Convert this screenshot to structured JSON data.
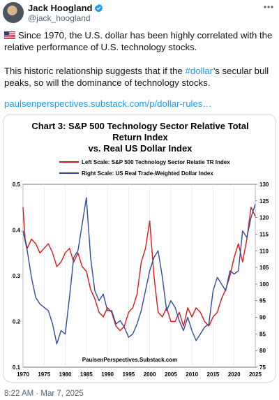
{
  "tweet": {
    "display_name": "Jack Hoogland",
    "handle": "@jack_hoogland",
    "line1": "Since 1970, the U.S. dollar has been highly correlated with the",
    "line2": "relative performance of U.S. technology stocks.",
    "line3_pre": "This historic relationship suggests that if the ",
    "hashtag": "#dollar",
    "line3_post": "’s secular bull",
    "line4": "peaks, so will the dominance of technology stocks.",
    "link": "paulsenperspectives.substack.com/p/dollar-rules…",
    "timestamp": "8:22 AM · Mar 7, 2025",
    "accent_color": "#1d9bf0"
  },
  "chart_data": {
    "type": "line",
    "title_line1": "Chart 3: S&P 500 Technology Sector Relative Total",
    "title_line2": "Return Index",
    "title_line3": "vs. Real US Dollar Index",
    "legend": [
      {
        "name": "Left Scale: S&P 500 Technology Sector Relatie TR Index",
        "color": "#d7191c"
      },
      {
        "name": "Right Scale: US Real Trade-Weighted Dollar Index",
        "color": "#2f4b9a"
      }
    ],
    "source_note": "PaulsenPerspectives.Substack.com",
    "x_ticks": [
      "1970",
      "1975",
      "1980",
      "1985",
      "1990",
      "1995",
      "2000",
      "2005",
      "2010",
      "2015",
      "2020",
      "2025"
    ],
    "left_ticks": [
      "0.1",
      "0.2",
      "0.3",
      "0.4",
      "0.5"
    ],
    "right_ticks": [
      "75",
      "80",
      "85",
      "90",
      "95",
      "100",
      "105",
      "110",
      "115",
      "120",
      "125",
      "130"
    ],
    "xlim": [
      1970,
      2025
    ],
    "ylim_left": [
      0.1,
      0.5
    ],
    "ylim_right": [
      75,
      130
    ],
    "series": [
      {
        "name": "Left Scale: S&P 500 Technology Sector Relatie TR Index",
        "axis": "left",
        "color": "#d7191c",
        "x": [
          1970,
          1970.5,
          1971,
          1972,
          1973,
          1974,
          1975,
          1976,
          1977,
          1978,
          1979,
          1980,
          1981,
          1982,
          1983,
          1984,
          1985,
          1986,
          1987,
          1988,
          1989,
          1990,
          1991,
          1992,
          1993,
          1994,
          1995,
          1996,
          1997,
          1998,
          1999,
          2000,
          2001,
          2002,
          2003,
          2004,
          2005,
          2006,
          2007,
          2008,
          2009,
          2010,
          2011,
          2012,
          2013,
          2014,
          2015,
          2016,
          2017,
          2018,
          2019,
          2020,
          2021,
          2022,
          2023,
          2024,
          2025
        ],
        "y": [
          0.45,
          0.38,
          0.36,
          0.38,
          0.37,
          0.35,
          0.36,
          0.37,
          0.35,
          0.32,
          0.33,
          0.35,
          0.36,
          0.33,
          0.35,
          0.32,
          0.31,
          0.27,
          0.25,
          0.22,
          0.21,
          0.23,
          0.22,
          0.19,
          0.18,
          0.19,
          0.22,
          0.23,
          0.26,
          0.33,
          0.36,
          0.42,
          0.3,
          0.22,
          0.21,
          0.23,
          0.2,
          0.2,
          0.22,
          0.19,
          0.23,
          0.21,
          0.23,
          0.22,
          0.2,
          0.19,
          0.21,
          0.22,
          0.25,
          0.27,
          0.3,
          0.34,
          0.37,
          0.33,
          0.38,
          0.45,
          0.43
        ]
      },
      {
        "name": "Right Scale: US Real Trade-Weighted Dollar Index",
        "axis": "right",
        "color": "#2f4b9a",
        "x": [
          1970,
          1971,
          1972,
          1973,
          1974,
          1975,
          1976,
          1977,
          1978,
          1979,
          1980,
          1981,
          1982,
          1983,
          1984,
          1985,
          1986,
          1987,
          1988,
          1989,
          1990,
          1991,
          1992,
          1993,
          1994,
          1995,
          1996,
          1997,
          1998,
          1999,
          2000,
          2001,
          2002,
          2003,
          2004,
          2005,
          2006,
          2007,
          2008,
          2009,
          2010,
          2011,
          2012,
          2013,
          2014,
          2015,
          2016,
          2017,
          2018,
          2019,
          2020,
          2021,
          2022,
          2023,
          2024,
          2025
        ],
        "y": [
          116,
          110,
          102,
          96,
          94,
          93,
          92,
          88,
          82,
          86,
          85,
          96,
          108,
          110,
          118,
          126,
          108,
          98,
          95,
          97,
          92,
          92,
          88,
          89,
          87,
          84,
          85,
          88,
          92,
          98,
          104,
          108,
          110,
          102,
          92,
          95,
          93,
          89,
          86,
          90,
          86,
          83,
          85,
          87,
          88,
          98,
          102,
          100,
          98,
          104,
          103,
          104,
          116,
          114,
          120,
          124
        ]
      }
    ]
  }
}
